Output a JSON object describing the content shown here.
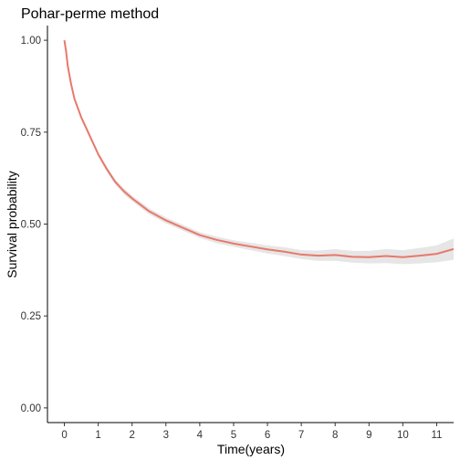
{
  "chart_data": {
    "type": "line",
    "title": "Pohar-perme method",
    "xlabel": "Time(years)",
    "ylabel": "Survival probability",
    "xlim": [
      -0.5,
      11.5
    ],
    "ylim": [
      -0.04,
      1.04
    ],
    "x_ticks": [
      {
        "value": 0,
        "label": "0"
      },
      {
        "value": 1,
        "label": "1"
      },
      {
        "value": 2,
        "label": "2"
      },
      {
        "value": 3,
        "label": "3"
      },
      {
        "value": 4,
        "label": "4"
      },
      {
        "value": 5,
        "label": "5"
      },
      {
        "value": 6,
        "label": "6"
      },
      {
        "value": 7,
        "label": "7"
      },
      {
        "value": 8,
        "label": "8"
      },
      {
        "value": 9,
        "label": "9"
      },
      {
        "value": 10,
        "label": "10"
      },
      {
        "value": 11,
        "label": "11"
      }
    ],
    "y_ticks": [
      {
        "value": 0,
        "label": "0.00"
      },
      {
        "value": 0.25,
        "label": "0.25"
      },
      {
        "value": 0.5,
        "label": "0.50"
      },
      {
        "value": 0.75,
        "label": "0.75"
      },
      {
        "value": 1,
        "label": "1.00"
      }
    ],
    "grid": false,
    "legend": "none",
    "series": [
      {
        "color": "#e8786c",
        "x": [
          0,
          0.05,
          0.1,
          0.2,
          0.3,
          0.5,
          0.75,
          1,
          1.25,
          1.5,
          1.75,
          2,
          2.5,
          3,
          3.5,
          4,
          4.5,
          5,
          5.5,
          6,
          6.5,
          7,
          7.5,
          8,
          8.5,
          9,
          9.5,
          10,
          10.5,
          11,
          11.5
        ],
        "y": [
          1.0,
          0.97,
          0.93,
          0.88,
          0.84,
          0.79,
          0.74,
          0.69,
          0.65,
          0.615,
          0.59,
          0.57,
          0.535,
          0.51,
          0.49,
          0.47,
          0.457,
          0.447,
          0.439,
          0.431,
          0.425,
          0.417,
          0.414,
          0.416,
          0.411,
          0.41,
          0.413,
          0.41,
          0.414,
          0.419,
          0.432
        ],
        "lower": [
          1.0,
          0.965,
          0.925,
          0.875,
          0.835,
          0.785,
          0.735,
          0.685,
          0.643,
          0.608,
          0.582,
          0.562,
          0.527,
          0.502,
          0.482,
          0.462,
          0.448,
          0.438,
          0.429,
          0.42,
          0.413,
          0.405,
          0.4,
          0.4,
          0.395,
          0.393,
          0.394,
          0.391,
          0.393,
          0.396,
          0.403
        ],
        "upper": [
          1.0,
          0.975,
          0.935,
          0.885,
          0.845,
          0.795,
          0.745,
          0.695,
          0.657,
          0.622,
          0.598,
          0.578,
          0.543,
          0.518,
          0.498,
          0.478,
          0.466,
          0.456,
          0.449,
          0.442,
          0.437,
          0.429,
          0.428,
          0.432,
          0.427,
          0.427,
          0.432,
          0.429,
          0.435,
          0.442,
          0.461
        ]
      }
    ]
  }
}
